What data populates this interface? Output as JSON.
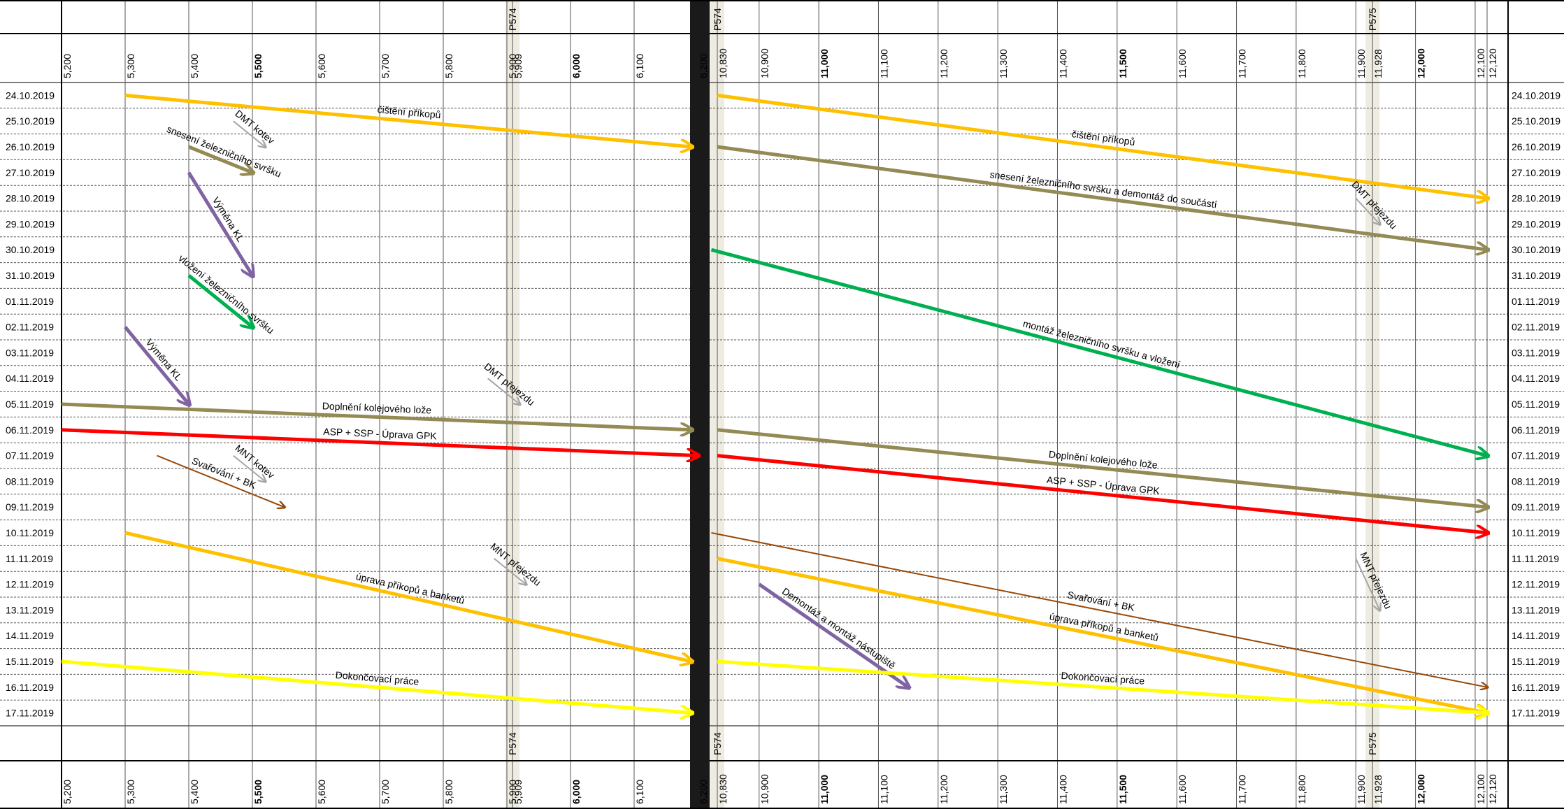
{
  "dates": [
    "24.10.2019",
    "25.10.2019",
    "26.10.2019",
    "27.10.2019",
    "28.10.2019",
    "29.10.2019",
    "30.10.2019",
    "31.10.2019",
    "01.11.2019",
    "02.11.2019",
    "03.11.2019",
    "04.11.2019",
    "05.11.2019",
    "06.11.2019",
    "07.11.2019",
    "08.11.2019",
    "09.11.2019",
    "10.11.2019",
    "11.11.2019",
    "12.11.2019",
    "13.11.2019",
    "14.11.2019",
    "15.11.2019",
    "16.11.2019",
    "17.11.2019"
  ],
  "left": {
    "km_ticks": [
      {
        "label": "5,200",
        "bold": false
      },
      {
        "label": "5,300",
        "bold": false
      },
      {
        "label": "5,400",
        "bold": false
      },
      {
        "label": "5,500",
        "bold": true
      },
      {
        "label": "5,600",
        "bold": false
      },
      {
        "label": "5,700",
        "bold": false
      },
      {
        "label": "5,800",
        "bold": false
      },
      {
        "label": "5,900",
        "bold": false
      },
      {
        "label": "5,909",
        "bold": false
      },
      {
        "label": "6,000",
        "bold": true
      },
      {
        "label": "6,100",
        "bold": false
      },
      {
        "label": "6,200",
        "bold": false
      }
    ],
    "crossing_label": "P574",
    "activities": [
      {
        "label": "čištění příkopů",
        "color": "#FFC000",
        "from": [
          5.3,
          "24.10.2019"
        ],
        "to": [
          6.19,
          "26.10.2019"
        ],
        "width": 5
      },
      {
        "label": "DMT kotev",
        "color": "#A6A6A6",
        "from": [
          5.47,
          "25.10.2019"
        ],
        "to": [
          5.52,
          "26.10.2019"
        ],
        "width": 2
      },
      {
        "label": "snesení železničního svršku",
        "color": "#948A54",
        "from": [
          5.4,
          "26.10.2019"
        ],
        "to": [
          5.5,
          "27.10.2019"
        ],
        "width": 5
      },
      {
        "label": "Výměna KL",
        "color": "#8064A2",
        "from": [
          5.4,
          "27.10.2019"
        ],
        "to": [
          5.5,
          "31.10.2019"
        ],
        "width": 5
      },
      {
        "label": "vložení železničního svršku",
        "color": "#00B050",
        "from": [
          5.4,
          "31.10.2019"
        ],
        "to": [
          5.5,
          "02.11.2019"
        ],
        "width": 5
      },
      {
        "label": "Výměna KL",
        "color": "#8064A2",
        "from": [
          5.3,
          "02.11.2019"
        ],
        "to": [
          5.4,
          "05.11.2019"
        ],
        "width": 5
      },
      {
        "label": "DMT přejezdu",
        "color": "#A6A6A6",
        "from": [
          5.87,
          "04.11.2019"
        ],
        "to": [
          5.92,
          "05.11.2019"
        ],
        "width": 2
      },
      {
        "label": "Doplnění kolejového lože",
        "color": "#948A54",
        "from": [
          5.2,
          "05.11.2019"
        ],
        "to": [
          6.19,
          "06.11.2019"
        ],
        "width": 5
      },
      {
        "label": "ASP + SSP - Úprava GPK",
        "color": "#FF0000",
        "from": [
          5.2,
          "06.11.2019"
        ],
        "to": [
          6.2,
          "07.11.2019"
        ],
        "width": 5
      },
      {
        "label": "MNT kotev",
        "color": "#A6A6A6",
        "from": [
          5.47,
          "07.11.2019"
        ],
        "to": [
          5.52,
          "08.11.2019"
        ],
        "width": 2
      },
      {
        "label": "Svařování + BK",
        "color": "#984807",
        "from": [
          5.35,
          "07.11.2019"
        ],
        "to": [
          5.55,
          "09.11.2019"
        ],
        "width": 2
      },
      {
        "label": "MNT přejezdu",
        "color": "#A6A6A6",
        "from": [
          5.88,
          "11.11.2019"
        ],
        "to": [
          5.93,
          "12.11.2019"
        ],
        "width": 2
      },
      {
        "label": "úprava příkopů a banketů",
        "color": "#FFC000",
        "from": [
          5.3,
          "10.11.2019"
        ],
        "to": [
          6.19,
          "15.11.2019"
        ],
        "width": 5
      },
      {
        "label": "Dokončovací práce",
        "color": "#FFFF00",
        "from": [
          5.2,
          "15.11.2019"
        ],
        "to": [
          6.19,
          "17.11.2019"
        ],
        "width": 5
      }
    ]
  },
  "right": {
    "km_ticks": [
      {
        "label": "10,830",
        "bold": false
      },
      {
        "label": "10,900",
        "bold": false
      },
      {
        "label": "11,000",
        "bold": true
      },
      {
        "label": "11,100",
        "bold": false
      },
      {
        "label": "11,200",
        "bold": false
      },
      {
        "label": "11,300",
        "bold": false
      },
      {
        "label": "11,400",
        "bold": false
      },
      {
        "label": "11,500",
        "bold": true
      },
      {
        "label": "11,600",
        "bold": false
      },
      {
        "label": "11,700",
        "bold": false
      },
      {
        "label": "11,800",
        "bold": false
      },
      {
        "label": "11,900",
        "bold": false
      },
      {
        "label": "11,928",
        "bold": false
      },
      {
        "label": "12,000",
        "bold": true
      },
      {
        "label": "12,100",
        "bold": false
      },
      {
        "label": "12,120",
        "bold": false
      }
    ],
    "crossing_label_start": "P574",
    "crossing_label_end": "P575",
    "activities": [
      {
        "label": "čištění příkopů",
        "color": "#FFC000",
        "from": [
          10.83,
          "24.10.2019"
        ],
        "to": [
          12.12,
          "28.10.2019"
        ],
        "width": 5
      },
      {
        "label": "snesení železničního svršku a demontáž do součástí",
        "color": "#948A54",
        "from": [
          10.83,
          "26.10.2019"
        ],
        "to": [
          12.12,
          "30.10.2019"
        ],
        "width": 5
      },
      {
        "label": "DMT přejezdu",
        "color": "#A6A6A6",
        "from": [
          11.9,
          "28.10.2019"
        ],
        "to": [
          11.94,
          "29.10.2019"
        ],
        "width": 2
      },
      {
        "label": "montáž železničního svršku a vložení",
        "color": "#00B050",
        "from": [
          10.82,
          "30.10.2019"
        ],
        "to": [
          12.12,
          "07.11.2019"
        ],
        "width": 5
      },
      {
        "label": "Doplnění kolejového lože",
        "color": "#948A54",
        "from": [
          10.83,
          "06.11.2019"
        ],
        "to": [
          12.12,
          "09.11.2019"
        ],
        "width": 5
      },
      {
        "label": "ASP + SSP - Úprava GPK",
        "color": "#FF0000",
        "from": [
          10.83,
          "07.11.2019"
        ],
        "to": [
          12.12,
          "10.11.2019"
        ],
        "width": 5
      },
      {
        "label": "MNT přejezdu",
        "color": "#A6A6A6",
        "from": [
          11.9,
          "11.11.2019"
        ],
        "to": [
          11.94,
          "13.11.2019"
        ],
        "width": 2
      },
      {
        "label": "Svařování + BK",
        "color": "#984807",
        "from": [
          10.82,
          "10.11.2019"
        ],
        "to": [
          12.12,
          "16.11.2019"
        ],
        "width": 2
      },
      {
        "label": "úprava příkopů a banketů",
        "color": "#FFC000",
        "from": [
          10.83,
          "11.11.2019"
        ],
        "to": [
          12.12,
          "17.11.2019"
        ],
        "width": 5
      },
      {
        "label": "Demontáž a montáž nástupiště",
        "color": "#8064A2",
        "from": [
          10.9,
          "12.11.2019"
        ],
        "to": [
          11.15,
          "16.11.2019"
        ],
        "width": 5
      },
      {
        "label": "Dokončovací práce",
        "color": "#FFFF00",
        "from": [
          10.83,
          "15.11.2019"
        ],
        "to": [
          12.12,
          "17.11.2019"
        ],
        "width": 5
      }
    ]
  },
  "colors": {
    "crossing_band": "#EEEBE1",
    "divider": "#1A1A1A",
    "grid": "#555555"
  }
}
